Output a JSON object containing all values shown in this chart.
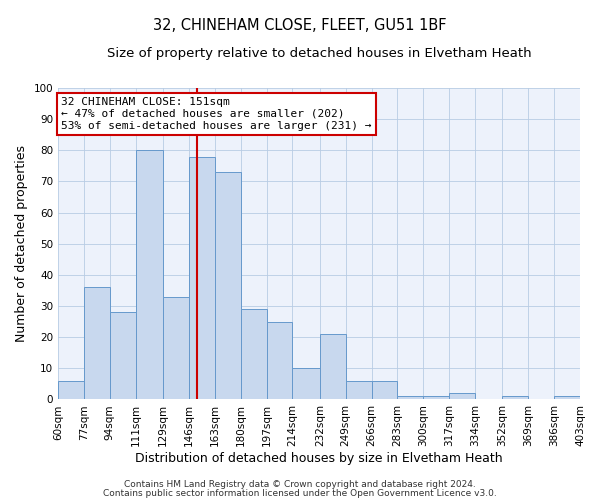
{
  "title1": "32, CHINEHAM CLOSE, FLEET, GU51 1BF",
  "title2": "Size of property relative to detached houses in Elvetham Heath",
  "xlabel": "Distribution of detached houses by size in Elvetham Heath",
  "ylabel": "Number of detached properties",
  "bin_edges": [
    60,
    77,
    94,
    111,
    129,
    146,
    163,
    180,
    197,
    214,
    232,
    249,
    266,
    283,
    300,
    317,
    334,
    352,
    369,
    386,
    403
  ],
  "bar_heights": [
    6,
    36,
    28,
    80,
    33,
    78,
    73,
    29,
    25,
    10,
    21,
    6,
    6,
    1,
    1,
    2,
    0,
    1,
    0,
    1
  ],
  "bar_color": "#c8d8ee",
  "bar_edgecolor": "#6699cc",
  "vline_x": 151,
  "vline_color": "#cc0000",
  "annotation_title": "32 CHINEHAM CLOSE: 151sqm",
  "annotation_line1": "← 47% of detached houses are smaller (202)",
  "annotation_line2": "53% of semi-detached houses are larger (231) →",
  "annotation_box_edgecolor": "#cc0000",
  "annotation_box_facecolor": "#ffffff",
  "yticks": [
    0,
    10,
    20,
    30,
    40,
    50,
    60,
    70,
    80,
    90,
    100
  ],
  "ylim": [
    0,
    100
  ],
  "xtick_labels": [
    "60sqm",
    "77sqm",
    "94sqm",
    "111sqm",
    "129sqm",
    "146sqm",
    "163sqm",
    "180sqm",
    "197sqm",
    "214sqm",
    "232sqm",
    "249sqm",
    "266sqm",
    "283sqm",
    "300sqm",
    "317sqm",
    "334sqm",
    "352sqm",
    "369sqm",
    "386sqm",
    "403sqm"
  ],
  "footer1": "Contains HM Land Registry data © Crown copyright and database right 2024.",
  "footer2": "Contains public sector information licensed under the Open Government Licence v3.0.",
  "bg_color": "#ffffff",
  "plot_bg_color": "#edf2fb",
  "grid_color": "#b8cce4",
  "title_fontsize": 10.5,
  "subtitle_fontsize": 9.5,
  "axis_label_fontsize": 9,
  "tick_fontsize": 7.5,
  "footer_fontsize": 6.5,
  "annotation_fontsize": 8
}
